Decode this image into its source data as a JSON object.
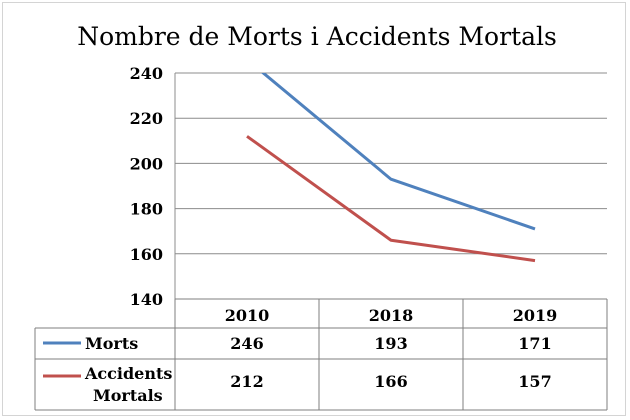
{
  "chart_data": {
    "type": "line",
    "title": "Nombre de Morts i Accidents Mortals",
    "categories": [
      "2010",
      "2018",
      "2019"
    ],
    "ylim": [
      140,
      240
    ],
    "yticks": [
      "240",
      "220",
      "200",
      "180",
      "160",
      "140"
    ],
    "grid": true,
    "legend": "data-table",
    "series": [
      {
        "name": "Morts",
        "values": [
          246,
          193,
          171
        ],
        "labels": [
          "246",
          "193",
          "171"
        ],
        "color": "#4f81bd"
      },
      {
        "name": "Accidents Mortals",
        "name_lines": [
          "Accidents",
          "Mortals"
        ],
        "values": [
          212,
          166,
          157
        ],
        "labels": [
          "212",
          "166",
          "157"
        ],
        "color": "#c0504d"
      }
    ]
  }
}
